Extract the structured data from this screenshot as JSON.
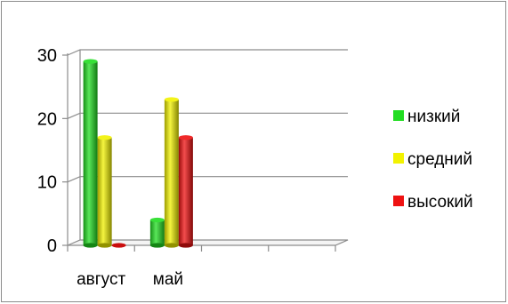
{
  "chart_data": {
    "type": "bar",
    "style": "3d-cylinder",
    "categories": [
      "август",
      "май"
    ],
    "series": [
      {
        "name": "низкий",
        "values": [
          29,
          4
        ],
        "color": "#22dd22"
      },
      {
        "name": "средний",
        "values": [
          17,
          23
        ],
        "color": "#f2f200"
      },
      {
        "name": "высокий",
        "values": [
          0,
          17
        ],
        "color": "#ee1111"
      }
    ],
    "ylim": [
      0,
      30
    ],
    "yticks": [
      "0",
      "10",
      "20",
      "30"
    ],
    "category_slots": 4,
    "grid": true,
    "legend": "right",
    "title": "",
    "xlabel": "",
    "ylabel": ""
  }
}
